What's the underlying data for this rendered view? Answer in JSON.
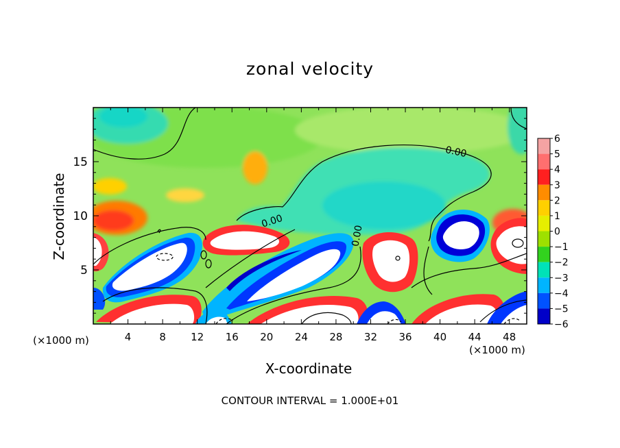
{
  "chart_data": {
    "type": "heatmap",
    "title": "zonal velocity",
    "xlabel": "X-coordinate",
    "ylabel": "Z-coordinate",
    "x_unit_label": "(×1000 m)",
    "y_unit_label": "(×1000 m)",
    "x_ticks": [
      4,
      8,
      12,
      16,
      20,
      24,
      28,
      32,
      36,
      40,
      44,
      48
    ],
    "y_ticks": [
      5,
      10,
      15
    ],
    "xlim": [
      0,
      50
    ],
    "ylim": [
      0,
      20
    ],
    "colorbar": {
      "levels": [
        6,
        5,
        4,
        3,
        2,
        1,
        0,
        -1,
        -2,
        -3,
        -4,
        -5,
        -6
      ],
      "colors": [
        "#f4a3a3",
        "#ff6f6f",
        "#ff2020",
        "#ff8c00",
        "#ffd000",
        "#e6ee00",
        "#9ee000",
        "#32d21e",
        "#00e2b8",
        "#00b4ff",
        "#0052ff",
        "#0000c8",
        "#7800b4"
      ]
    },
    "contour_labels": [
      "0.00",
      "0.00",
      "0.00"
    ],
    "contour_interval_text": "CONTOUR INTERVAL = 1.000E+01",
    "grid": false
  }
}
